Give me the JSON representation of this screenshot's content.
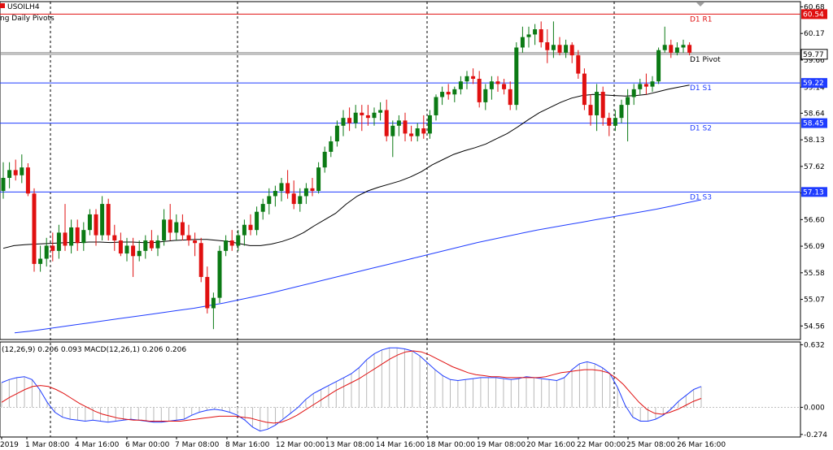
{
  "window": {
    "symbol_title": "USOILH4",
    "indicator_label": "ng Daily Pivots"
  },
  "price_axis": {
    "ticks": [
      "60.68",
      "60.17",
      "59.66",
      "59.14",
      "58.64",
      "58.13",
      "57.62",
      "57.11",
      "56.60",
      "56.09",
      "55.58",
      "55.07",
      "54.56"
    ],
    "range": [
      54.3,
      60.78
    ]
  },
  "pivot_levels": [
    {
      "name": "D1 R1",
      "value": 60.54,
      "tag": "60.54",
      "color": "#e01010"
    },
    {
      "name": "D1 Pivot",
      "value": 59.77,
      "tag": "59.77",
      "color": "#808080"
    },
    {
      "name": "D1 S1",
      "value": 59.22,
      "tag": "59.22",
      "color": "#1f3cff"
    },
    {
      "name": "D1 S2",
      "value": 58.45,
      "tag": "58.45",
      "color": "#1f3cff"
    },
    {
      "name": "D1 S3",
      "value": 57.13,
      "tag": "57.13",
      "color": "#1f3cff"
    }
  ],
  "current_price": {
    "value": 59.77,
    "label": "59.77"
  },
  "macd": {
    "header": "(12,26,9) 0.206 0.093 MACD(12,26,1) 0.206 0.206",
    "ticks": [
      "0.632",
      "0.000",
      "-0.274"
    ],
    "range": [
      -0.3,
      0.66
    ]
  },
  "time_axis": {
    "labels": [
      "2019",
      "1 Mar 08:00",
      "4 Mar 16:00",
      "6 Mar 00:00",
      "7 Mar 08:00",
      "8 Mar 16:00",
      "12 Mar 00:00",
      "13 Mar 08:00",
      "14 Mar 16:00",
      "18 Mar 00:00",
      "19 Mar 08:00",
      "20 Mar 16:00",
      "22 Mar 00:00",
      "25 Mar 08:00",
      "26 Mar 16:00"
    ]
  },
  "colors": {
    "bull": "#0b7a14",
    "bear": "#e01010",
    "ma_fast": "#000000",
    "ma_slow": "#1f3cff",
    "macd_line": "#1f3cff",
    "signal_line": "#e01010",
    "histogram": "#b8b8b8"
  },
  "chart_data": {
    "type": "candlestick",
    "candles": [
      {
        "o": 57.15,
        "h": 57.7,
        "l": 57.0,
        "c": 57.4
      },
      {
        "o": 57.4,
        "h": 57.7,
        "l": 57.2,
        "c": 57.55
      },
      {
        "o": 57.55,
        "h": 57.75,
        "l": 57.35,
        "c": 57.45
      },
      {
        "o": 57.45,
        "h": 57.85,
        "l": 57.3,
        "c": 57.6
      },
      {
        "o": 57.6,
        "h": 57.68,
        "l": 57.05,
        "c": 57.1
      },
      {
        "o": 57.1,
        "h": 57.2,
        "l": 55.6,
        "c": 55.75
      },
      {
        "o": 55.75,
        "h": 56.1,
        "l": 55.6,
        "c": 55.85
      },
      {
        "o": 55.85,
        "h": 56.25,
        "l": 55.7,
        "c": 56.1
      },
      {
        "o": 56.1,
        "h": 56.35,
        "l": 55.8,
        "c": 56.0
      },
      {
        "o": 56.0,
        "h": 56.5,
        "l": 55.85,
        "c": 56.35
      },
      {
        "o": 56.35,
        "h": 56.9,
        "l": 56.0,
        "c": 56.1
      },
      {
        "o": 56.1,
        "h": 56.6,
        "l": 55.95,
        "c": 56.45
      },
      {
        "o": 56.45,
        "h": 56.6,
        "l": 56.0,
        "c": 56.15
      },
      {
        "o": 56.15,
        "h": 56.55,
        "l": 56.0,
        "c": 56.4
      },
      {
        "o": 56.4,
        "h": 56.8,
        "l": 56.3,
        "c": 56.7
      },
      {
        "o": 56.7,
        "h": 56.8,
        "l": 56.1,
        "c": 56.3
      },
      {
        "o": 56.3,
        "h": 57.05,
        "l": 56.2,
        "c": 56.9
      },
      {
        "o": 56.9,
        "h": 57.0,
        "l": 56.2,
        "c": 56.3
      },
      {
        "o": 56.3,
        "h": 56.5,
        "l": 56.0,
        "c": 56.2
      },
      {
        "o": 56.2,
        "h": 56.35,
        "l": 55.9,
        "c": 55.95
      },
      {
        "o": 55.95,
        "h": 56.25,
        "l": 55.8,
        "c": 56.1
      },
      {
        "o": 56.1,
        "h": 56.25,
        "l": 55.5,
        "c": 55.9
      },
      {
        "o": 55.9,
        "h": 56.2,
        "l": 55.8,
        "c": 56.0
      },
      {
        "o": 56.0,
        "h": 56.3,
        "l": 55.85,
        "c": 56.2
      },
      {
        "o": 56.2,
        "h": 56.4,
        "l": 56.0,
        "c": 56.05
      },
      {
        "o": 56.05,
        "h": 56.3,
        "l": 55.9,
        "c": 56.2
      },
      {
        "o": 56.2,
        "h": 56.8,
        "l": 56.1,
        "c": 56.6
      },
      {
        "o": 56.6,
        "h": 56.9,
        "l": 56.2,
        "c": 56.35
      },
      {
        "o": 56.35,
        "h": 56.7,
        "l": 56.2,
        "c": 56.55
      },
      {
        "o": 56.55,
        "h": 56.7,
        "l": 56.2,
        "c": 56.3
      },
      {
        "o": 56.3,
        "h": 56.5,
        "l": 56.1,
        "c": 56.2
      },
      {
        "o": 56.2,
        "h": 56.35,
        "l": 55.9,
        "c": 56.15
      },
      {
        "o": 56.15,
        "h": 56.25,
        "l": 55.4,
        "c": 55.5
      },
      {
        "o": 55.5,
        "h": 55.7,
        "l": 54.8,
        "c": 54.9
      },
      {
        "o": 54.9,
        "h": 55.2,
        "l": 54.5,
        "c": 55.1
      },
      {
        "o": 55.1,
        "h": 56.1,
        "l": 55.0,
        "c": 56.0
      },
      {
        "o": 56.0,
        "h": 56.3,
        "l": 55.9,
        "c": 56.2
      },
      {
        "o": 56.2,
        "h": 56.4,
        "l": 56.0,
        "c": 56.1
      },
      {
        "o": 56.1,
        "h": 56.4,
        "l": 56.0,
        "c": 56.3
      },
      {
        "o": 56.3,
        "h": 56.6,
        "l": 56.1,
        "c": 56.5
      },
      {
        "o": 56.5,
        "h": 56.7,
        "l": 56.3,
        "c": 56.4
      },
      {
        "o": 56.4,
        "h": 56.85,
        "l": 56.3,
        "c": 56.75
      },
      {
        "o": 56.75,
        "h": 57.0,
        "l": 56.6,
        "c": 56.9
      },
      {
        "o": 56.9,
        "h": 57.2,
        "l": 56.7,
        "c": 57.05
      },
      {
        "o": 57.05,
        "h": 57.25,
        "l": 56.85,
        "c": 57.15
      },
      {
        "o": 57.15,
        "h": 57.4,
        "l": 56.95,
        "c": 57.3
      },
      {
        "o": 57.3,
        "h": 57.55,
        "l": 57.0,
        "c": 57.1
      },
      {
        "o": 57.1,
        "h": 57.35,
        "l": 56.8,
        "c": 56.9
      },
      {
        "o": 56.9,
        "h": 57.2,
        "l": 56.75,
        "c": 57.05
      },
      {
        "o": 57.05,
        "h": 57.3,
        "l": 56.9,
        "c": 57.2
      },
      {
        "o": 57.2,
        "h": 57.4,
        "l": 57.05,
        "c": 57.15
      },
      {
        "o": 57.15,
        "h": 57.7,
        "l": 57.1,
        "c": 57.6
      },
      {
        "o": 57.6,
        "h": 58.0,
        "l": 57.5,
        "c": 57.9
      },
      {
        "o": 57.9,
        "h": 58.2,
        "l": 57.8,
        "c": 58.1
      },
      {
        "o": 58.1,
        "h": 58.5,
        "l": 58.0,
        "c": 58.4
      },
      {
        "o": 58.4,
        "h": 58.7,
        "l": 58.2,
        "c": 58.55
      },
      {
        "o": 58.55,
        "h": 58.75,
        "l": 58.3,
        "c": 58.45
      },
      {
        "o": 58.45,
        "h": 58.8,
        "l": 58.35,
        "c": 58.65
      },
      {
        "o": 58.65,
        "h": 58.8,
        "l": 58.3,
        "c": 58.6
      },
      {
        "o": 58.6,
        "h": 58.8,
        "l": 58.4,
        "c": 58.55
      },
      {
        "o": 58.55,
        "h": 58.75,
        "l": 58.4,
        "c": 58.65
      },
      {
        "o": 58.65,
        "h": 58.85,
        "l": 58.5,
        "c": 58.7
      },
      {
        "o": 58.7,
        "h": 58.9,
        "l": 58.1,
        "c": 58.2
      },
      {
        "o": 58.2,
        "h": 58.5,
        "l": 57.8,
        "c": 58.4
      },
      {
        "o": 58.4,
        "h": 58.6,
        "l": 58.2,
        "c": 58.5
      },
      {
        "o": 58.5,
        "h": 58.65,
        "l": 58.1,
        "c": 58.25
      },
      {
        "o": 58.25,
        "h": 58.4,
        "l": 58.1,
        "c": 58.2
      },
      {
        "o": 58.2,
        "h": 58.45,
        "l": 58.1,
        "c": 58.35
      },
      {
        "o": 58.35,
        "h": 58.6,
        "l": 58.15,
        "c": 58.25
      },
      {
        "o": 58.25,
        "h": 58.7,
        "l": 58.15,
        "c": 58.6
      },
      {
        "o": 58.6,
        "h": 59.0,
        "l": 58.5,
        "c": 58.95
      },
      {
        "o": 58.95,
        "h": 59.15,
        "l": 58.8,
        "c": 59.05
      },
      {
        "o": 59.05,
        "h": 59.2,
        "l": 58.9,
        "c": 59.0
      },
      {
        "o": 59.0,
        "h": 59.15,
        "l": 58.85,
        "c": 59.1
      },
      {
        "o": 59.1,
        "h": 59.35,
        "l": 59.0,
        "c": 59.25
      },
      {
        "o": 59.25,
        "h": 59.45,
        "l": 59.1,
        "c": 59.35
      },
      {
        "o": 59.35,
        "h": 59.5,
        "l": 59.2,
        "c": 59.3
      },
      {
        "o": 59.3,
        "h": 59.45,
        "l": 58.75,
        "c": 58.85
      },
      {
        "o": 58.85,
        "h": 59.2,
        "l": 58.7,
        "c": 59.1
      },
      {
        "o": 59.1,
        "h": 59.35,
        "l": 58.9,
        "c": 59.25
      },
      {
        "o": 59.25,
        "h": 59.35,
        "l": 59.05,
        "c": 59.2
      },
      {
        "o": 59.2,
        "h": 59.3,
        "l": 59.0,
        "c": 59.1
      },
      {
        "o": 59.1,
        "h": 59.25,
        "l": 58.7,
        "c": 58.8
      },
      {
        "o": 58.8,
        "h": 60.0,
        "l": 58.7,
        "c": 59.9
      },
      {
        "o": 59.9,
        "h": 60.3,
        "l": 59.8,
        "c": 60.1
      },
      {
        "o": 60.1,
        "h": 60.3,
        "l": 59.9,
        "c": 60.15
      },
      {
        "o": 60.15,
        "h": 60.35,
        "l": 59.95,
        "c": 60.25
      },
      {
        "o": 60.25,
        "h": 60.4,
        "l": 59.9,
        "c": 60.0
      },
      {
        "o": 60.0,
        "h": 60.25,
        "l": 59.6,
        "c": 59.85
      },
      {
        "o": 59.85,
        "h": 60.4,
        "l": 59.7,
        "c": 59.95
      },
      {
        "o": 59.95,
        "h": 60.1,
        "l": 59.75,
        "c": 59.8
      },
      {
        "o": 59.8,
        "h": 60.05,
        "l": 59.7,
        "c": 59.95
      },
      {
        "o": 59.95,
        "h": 60.0,
        "l": 59.6,
        "c": 59.75
      },
      {
        "o": 59.75,
        "h": 59.85,
        "l": 59.3,
        "c": 59.4
      },
      {
        "o": 59.4,
        "h": 59.5,
        "l": 58.7,
        "c": 58.8
      },
      {
        "o": 58.8,
        "h": 59.0,
        "l": 58.4,
        "c": 58.6
      },
      {
        "o": 58.6,
        "h": 59.2,
        "l": 58.3,
        "c": 59.05
      },
      {
        "o": 59.05,
        "h": 59.15,
        "l": 58.4,
        "c": 58.55
      },
      {
        "o": 58.55,
        "h": 58.65,
        "l": 58.2,
        "c": 58.4
      },
      {
        "o": 58.4,
        "h": 58.7,
        "l": 58.3,
        "c": 58.55
      },
      {
        "o": 58.55,
        "h": 58.9,
        "l": 58.45,
        "c": 58.8
      },
      {
        "o": 58.8,
        "h": 59.1,
        "l": 58.1,
        "c": 58.95
      },
      {
        "o": 58.95,
        "h": 59.2,
        "l": 58.8,
        "c": 59.1
      },
      {
        "o": 59.1,
        "h": 59.3,
        "l": 59.0,
        "c": 59.2
      },
      {
        "o": 59.2,
        "h": 59.4,
        "l": 59.0,
        "c": 59.15
      },
      {
        "o": 59.15,
        "h": 59.35,
        "l": 59.05,
        "c": 59.25
      },
      {
        "o": 59.25,
        "h": 59.9,
        "l": 59.2,
        "c": 59.85
      },
      {
        "o": 59.85,
        "h": 60.3,
        "l": 59.8,
        "c": 59.95
      },
      {
        "o": 59.95,
        "h": 60.05,
        "l": 59.7,
        "c": 59.8
      },
      {
        "o": 59.8,
        "h": 60.0,
        "l": 59.75,
        "c": 59.9
      },
      {
        "o": 59.9,
        "h": 60.05,
        "l": 59.8,
        "c": 59.95
      },
      {
        "o": 59.95,
        "h": 60.0,
        "l": 59.75,
        "c": 59.8
      }
    ],
    "ma_fast": [
      56.05,
      56.1,
      56.12,
      56.13,
      56.14,
      56.15,
      56.16,
      56.16,
      56.17,
      56.17,
      56.16,
      56.17,
      56.17,
      56.16,
      56.16,
      56.18,
      56.2,
      56.21,
      56.22,
      56.22,
      56.2,
      56.18,
      56.14,
      56.1,
      56.1,
      56.13,
      56.18,
      56.25,
      56.35,
      56.48,
      56.6,
      56.72,
      56.9,
      57.05,
      57.15,
      57.22,
      57.28,
      57.34,
      57.42,
      57.52,
      57.65,
      57.75,
      57.85,
      57.92,
      57.98,
      58.05,
      58.15,
      58.25,
      58.38,
      58.52,
      58.65,
      58.75,
      58.85,
      58.93,
      58.98,
      59.0,
      58.99,
      58.98,
      58.97,
      58.98,
      59.0,
      59.05,
      59.1,
      59.14,
      59.18
    ],
    "ma_fast_start_index": 0,
    "ma_slow": [
      54.43,
      54.46,
      54.5,
      54.54,
      54.58,
      54.62,
      54.66,
      54.7,
      54.74,
      54.78,
      54.82,
      54.86,
      54.9,
      54.95,
      55.0,
      55.06,
      55.12,
      55.18,
      55.25,
      55.32,
      55.39,
      55.46,
      55.53,
      55.6,
      55.67,
      55.74,
      55.81,
      55.88,
      55.95,
      56.02,
      56.09,
      56.16,
      56.22,
      56.28,
      56.34,
      56.4,
      56.45,
      56.5,
      56.55,
      56.6,
      56.65,
      56.7,
      56.75,
      56.8,
      56.86,
      56.92,
      56.98
    ],
    "macd_values": [
      0.25,
      0.28,
      0.3,
      0.31,
      0.28,
      0.18,
      0.05,
      -0.05,
      -0.1,
      -0.12,
      -0.13,
      -0.14,
      -0.13,
      -0.14,
      -0.15,
      -0.14,
      -0.13,
      -0.12,
      -0.13,
      -0.14,
      -0.15,
      -0.15,
      -0.14,
      -0.13,
      -0.12,
      -0.08,
      -0.05,
      -0.03,
      -0.02,
      -0.03,
      -0.05,
      -0.08,
      -0.13,
      -0.2,
      -0.24,
      -0.22,
      -0.18,
      -0.12,
      -0.06,
      0.0,
      0.08,
      0.14,
      0.18,
      0.22,
      0.26,
      0.3,
      0.34,
      0.4,
      0.48,
      0.54,
      0.58,
      0.6,
      0.6,
      0.59,
      0.57,
      0.52,
      0.45,
      0.38,
      0.32,
      0.28,
      0.27,
      0.28,
      0.29,
      0.3,
      0.3,
      0.3,
      0.29,
      0.28,
      0.29,
      0.31,
      0.3,
      0.29,
      0.28,
      0.27,
      0.3,
      0.38,
      0.44,
      0.46,
      0.44,
      0.4,
      0.34,
      0.2,
      0.02,
      -0.1,
      -0.14,
      -0.14,
      -0.12,
      -0.08,
      -0.02,
      0.06,
      0.12,
      0.18,
      0.21
    ],
    "signal_values": [
      0.05,
      0.1,
      0.14,
      0.18,
      0.21,
      0.22,
      0.21,
      0.18,
      0.14,
      0.09,
      0.04,
      0.0,
      -0.04,
      -0.07,
      -0.09,
      -0.11,
      -0.12,
      -0.13,
      -0.13,
      -0.14,
      -0.14,
      -0.14,
      -0.14,
      -0.14,
      -0.13,
      -0.12,
      -0.11,
      -0.1,
      -0.09,
      -0.09,
      -0.09,
      -0.1,
      -0.11,
      -0.13,
      -0.15,
      -0.16,
      -0.15,
      -0.12,
      -0.08,
      -0.03,
      0.02,
      0.07,
      0.12,
      0.17,
      0.21,
      0.25,
      0.29,
      0.34,
      0.39,
      0.44,
      0.49,
      0.53,
      0.56,
      0.57,
      0.56,
      0.53,
      0.49,
      0.45,
      0.41,
      0.38,
      0.35,
      0.33,
      0.32,
      0.31,
      0.31,
      0.3,
      0.3,
      0.3,
      0.3,
      0.3,
      0.31,
      0.33,
      0.35,
      0.36,
      0.37,
      0.38,
      0.38,
      0.37,
      0.35,
      0.3,
      0.23,
      0.14,
      0.05,
      -0.02,
      -0.06,
      -0.07,
      -0.05,
      -0.02,
      0.02,
      0.06,
      0.09
    ]
  }
}
